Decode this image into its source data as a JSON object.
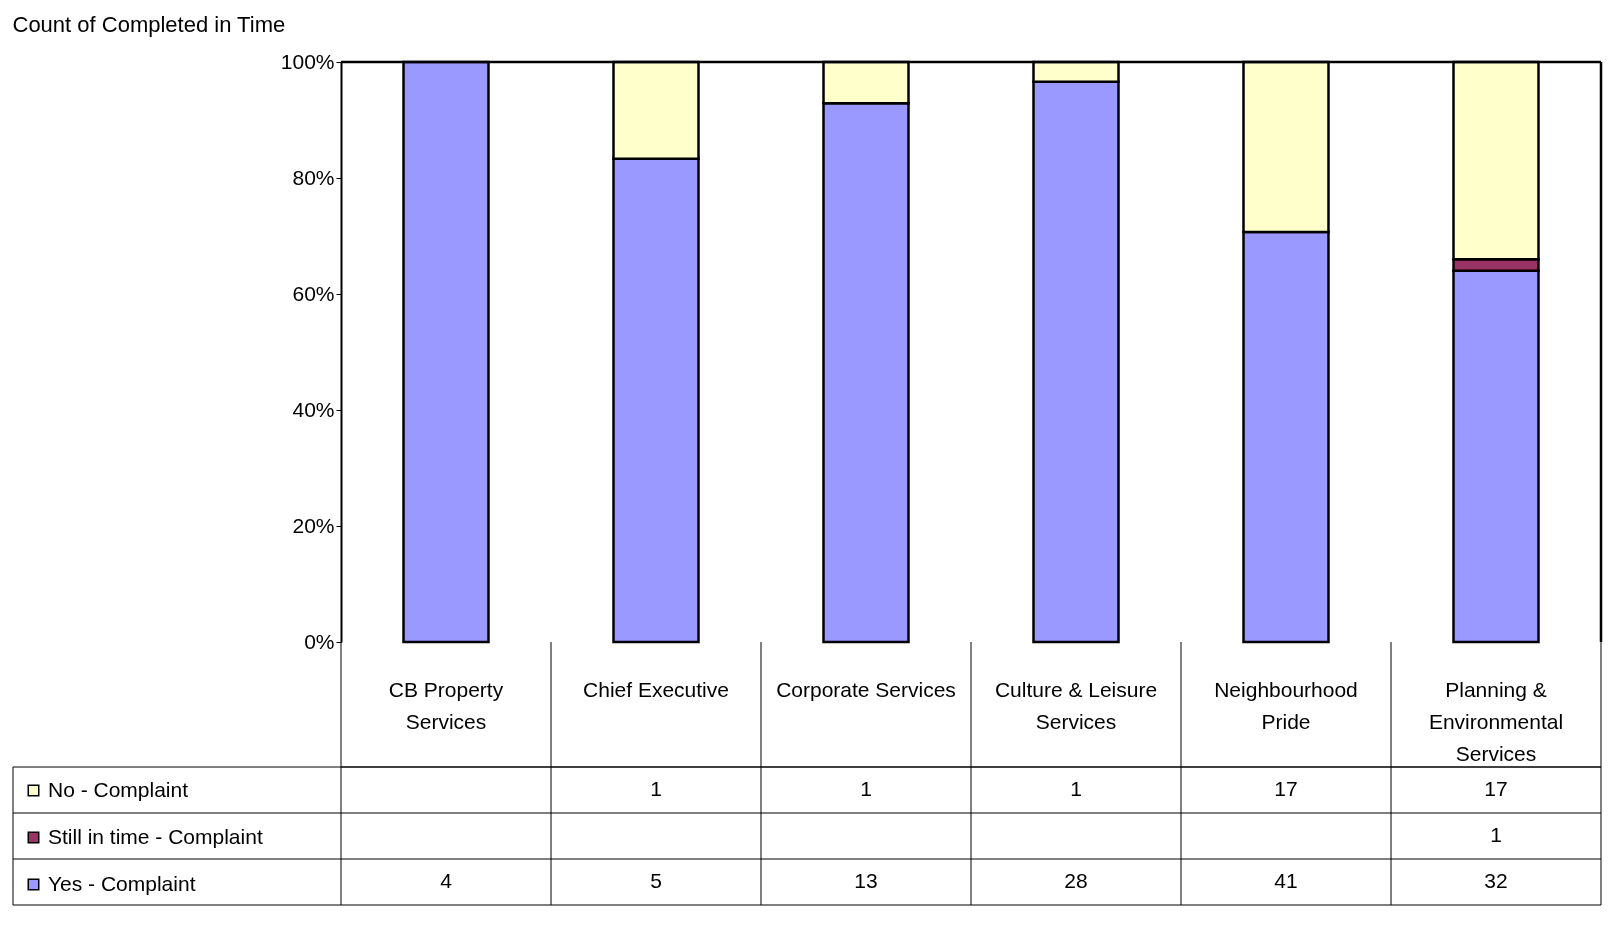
{
  "chart_data": {
    "type": "bar",
    "stacked": true,
    "title": "Count of Completed in Time",
    "categories": [
      "CB Property Services",
      "Chief Executive",
      "Corporate Services",
      "Culture & Leisure Services",
      "Neighbourhood Pride",
      "Planning & Environmental Services"
    ],
    "series": [
      {
        "name": "Yes - Complaint",
        "color": "#9999ff",
        "values": [
          100,
          83.3,
          92.9,
          96.6,
          70.7,
          64
        ]
      },
      {
        "name": "Still in time - Complaint",
        "color": "#993366",
        "values": [
          null,
          null,
          null,
          null,
          null,
          2
        ]
      },
      {
        "name": "No - Complaint",
        "color": "#ffffcc",
        "values": [
          null,
          16.7,
          7.1,
          3.4,
          29.3,
          34
        ]
      }
    ],
    "annotations": [
      "4",
      "5",
      "13",
      "28",
      "41",
      "32",
      "1",
      "1",
      "1",
      "1",
      "17",
      "17"
    ],
    "ylim": [
      0,
      100
    ],
    "yticks": [
      {
        "value": 0,
        "label": "0%"
      },
      {
        "value": 20,
        "label": "20%"
      },
      {
        "value": 40,
        "label": "40%"
      },
      {
        "value": 60,
        "label": "60%"
      },
      {
        "value": 80,
        "label": "80%"
      },
      {
        "value": 100,
        "label": "100%"
      }
    ],
    "grid": false,
    "legend": "bottom left"
  }
}
